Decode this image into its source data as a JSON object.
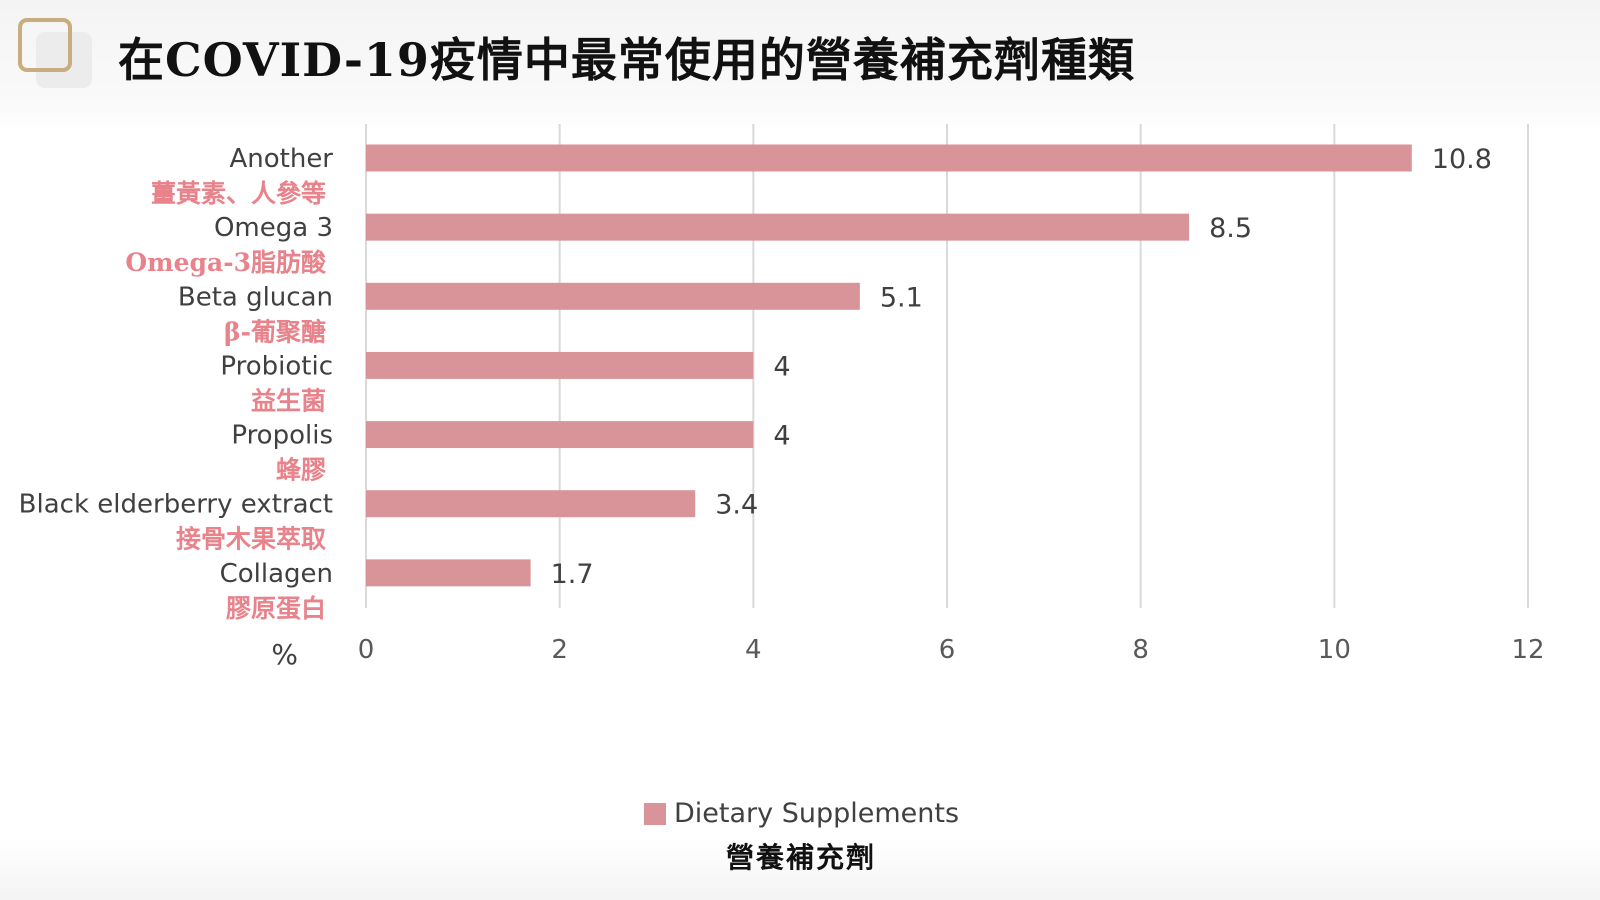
{
  "slide": {
    "title": "在COVID-19疫情中最常使用的營養補充劑種類"
  },
  "colors": {
    "bar": "#d99499",
    "grid": "#d9d9d9",
    "label_en": "#404040",
    "label_cn": "#e8838b",
    "title_box": "#c8ad7f"
  },
  "chart_data": {
    "type": "bar",
    "orientation": "horizontal",
    "categories": [
      "Another",
      "Omega 3",
      "Beta glucan",
      "Probiotic",
      "Propolis",
      "Black elderberry extract",
      "Collagen"
    ],
    "categories_cn": [
      "薑黃素、人參等",
      "Omega-3脂肪酸",
      "β-葡聚醣",
      "益生菌",
      "蜂膠",
      "接骨木果萃取",
      "膠原蛋白"
    ],
    "series": [
      {
        "name": "Dietary Supplements",
        "values": [
          10.8,
          8.5,
          5.1,
          4,
          4,
          3.4,
          1.7
        ]
      }
    ],
    "data_labels": [
      "10.8",
      "8.5",
      "5.1",
      "4",
      "4",
      "3.4",
      "1.7"
    ],
    "xlabel": "%",
    "xlim": [
      0,
      12
    ],
    "xticks": [
      "0",
      "2",
      "4",
      "6",
      "8",
      "10",
      "12"
    ],
    "grid": true,
    "legend": {
      "position": "bottom",
      "label": "Dietary Supplements",
      "label_cn": "營養補充劑"
    }
  }
}
